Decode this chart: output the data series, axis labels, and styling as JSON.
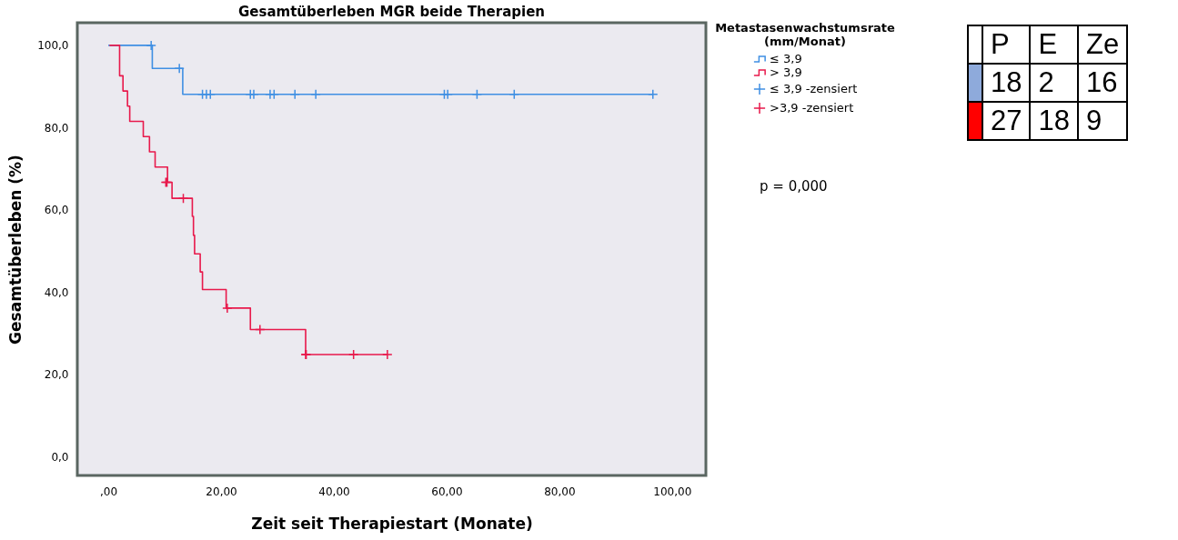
{
  "chart_data": {
    "type": "step",
    "title": "Gesamtüberleben MGR beide Therapien",
    "xlabel": "Zeit seit Therapiestart (Monate)",
    "ylabel": "Gesamtüberleben (%)",
    "legend_title": "Metastasenwachstumsrate (mm/Monat)",
    "legend": "right",
    "grid": false,
    "xlim": [
      -5.5,
      106
    ],
    "ylim": [
      -4.6,
      105.5
    ],
    "xticks": [
      {
        "value": 0,
        "label": ",00"
      },
      {
        "value": 20,
        "label": "20,00"
      },
      {
        "value": 40,
        "label": "40,00"
      },
      {
        "value": 60,
        "label": "60,00"
      },
      {
        "value": 80,
        "label": "80,00"
      },
      {
        "value": 100,
        "label": "100,00"
      }
    ],
    "yticks": [
      {
        "value": 0,
        "label": "0,0"
      },
      {
        "value": 20,
        "label": "20,0"
      },
      {
        "value": 40,
        "label": "40,0"
      },
      {
        "value": 60,
        "label": "60,0"
      },
      {
        "value": 80,
        "label": "80,0"
      },
      {
        "value": 100,
        "label": "100,0"
      }
    ],
    "series": [
      {
        "name": "≤ 3,9",
        "type": "step",
        "color": "#3f8fe3",
        "x": [
          0,
          7.8,
          13.2,
          96.6
        ],
        "values": [
          100,
          94.4,
          88.1,
          88.1
        ]
      },
      {
        "name": "> 3,9",
        "type": "step",
        "color": "#e8194b",
        "x": [
          0.2,
          2.0,
          2.6,
          3.4,
          3.8,
          6.2,
          7.3,
          8.3,
          10.5,
          11.3,
          14.9,
          15.1,
          15.3,
          16.3,
          16.7,
          20.9,
          25.2,
          35.0,
          49.5
        ],
        "values": [
          100,
          92.6,
          88.9,
          85.2,
          81.5,
          77.8,
          74.1,
          70.4,
          66.7,
          62.8,
          58.4,
          53.8,
          49.3,
          44.9,
          40.6,
          36.1,
          30.9,
          24.8,
          24.8
        ]
      },
      {
        "name": "≤ 3,9 -zensiert",
        "type": "scatter",
        "marker": "cross",
        "color": "#3f8fe3",
        "x": [
          7.6,
          12.6,
          16.7,
          17.4,
          18.1,
          25.2,
          25.8,
          28.7,
          29.4,
          33.1,
          36.8,
          59.6,
          60.2,
          65.4,
          72.0,
          96.6
        ],
        "values": [
          100,
          94.4,
          88.1,
          88.1,
          88.1,
          88.1,
          88.1,
          88.1,
          88.1,
          88.1,
          88.1,
          88.1,
          88.1,
          88.1,
          88.1,
          88.1
        ]
      },
      {
        "name": ">3,9 -zensiert",
        "type": "scatter",
        "marker": "cross",
        "color": "#e8194b",
        "x": [
          10.2,
          10.4,
          13.3,
          21.1,
          26.9,
          35.0,
          35.1,
          43.5,
          49.5
        ],
        "values": [
          66.7,
          66.7,
          62.8,
          36.1,
          30.9,
          24.8,
          24.8,
          24.8,
          24.8
        ]
      }
    ],
    "annotations": [
      "p = 0,000",
      "P",
      "E",
      "Ze",
      "18",
      "2",
      "16",
      "27",
      "18",
      "9"
    ]
  }
}
